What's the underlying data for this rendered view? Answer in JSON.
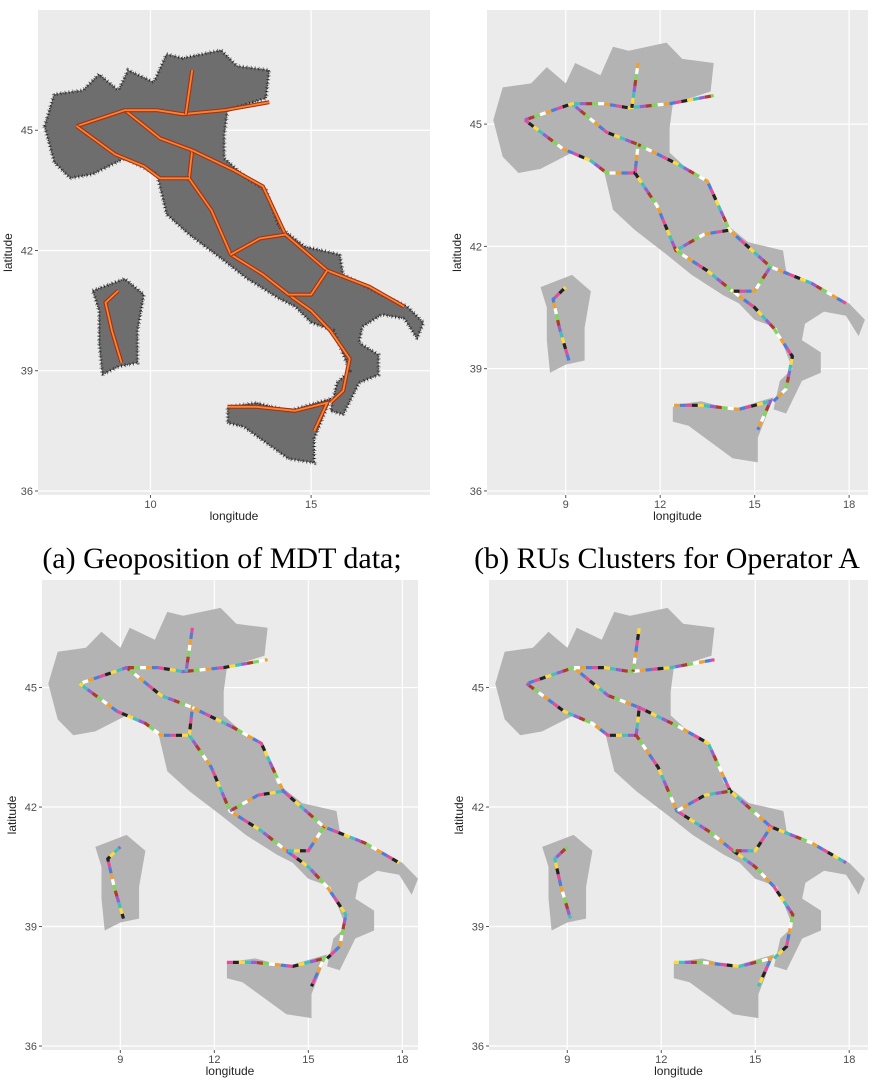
{
  "chart_data": [
    {
      "type": "map",
      "caption": "(a) Geoposition of MDT data;",
      "xlabel": "longitude",
      "ylabel": "latitude",
      "xlim": [
        6.5,
        18.7
      ],
      "ylim": [
        35.9,
        48.0
      ],
      "xticks": [
        10,
        15
      ],
      "yticks": [
        36,
        39,
        42,
        45
      ],
      "grid": true
    },
    {
      "type": "map",
      "caption": "(b) RUs Clusters for Operator A",
      "xlabel": "longitude",
      "ylabel": "latitude",
      "xlim": [
        6.5,
        18.6
      ],
      "ylim": [
        35.9,
        47.8
      ],
      "xticks": [
        9,
        12,
        15,
        18
      ],
      "yticks": [
        36,
        39,
        42,
        45
      ],
      "grid": true
    },
    {
      "type": "map",
      "xlabel": "longitude",
      "ylabel": "latitude",
      "xlim": [
        6.5,
        18.5
      ],
      "ylim": [
        35.9,
        47.7
      ],
      "xticks": [
        9,
        12,
        15,
        18
      ],
      "yticks": [
        36,
        39,
        42,
        45
      ],
      "grid": true
    },
    {
      "type": "map",
      "xlabel": "longitude",
      "ylabel": "latitude",
      "xlim": [
        6.5,
        18.6
      ],
      "ylim": [
        35.9,
        47.7
      ],
      "xticks": [
        9,
        12,
        15,
        18
      ],
      "yticks": [
        36,
        39,
        42,
        45
      ],
      "grid": true
    }
  ]
}
